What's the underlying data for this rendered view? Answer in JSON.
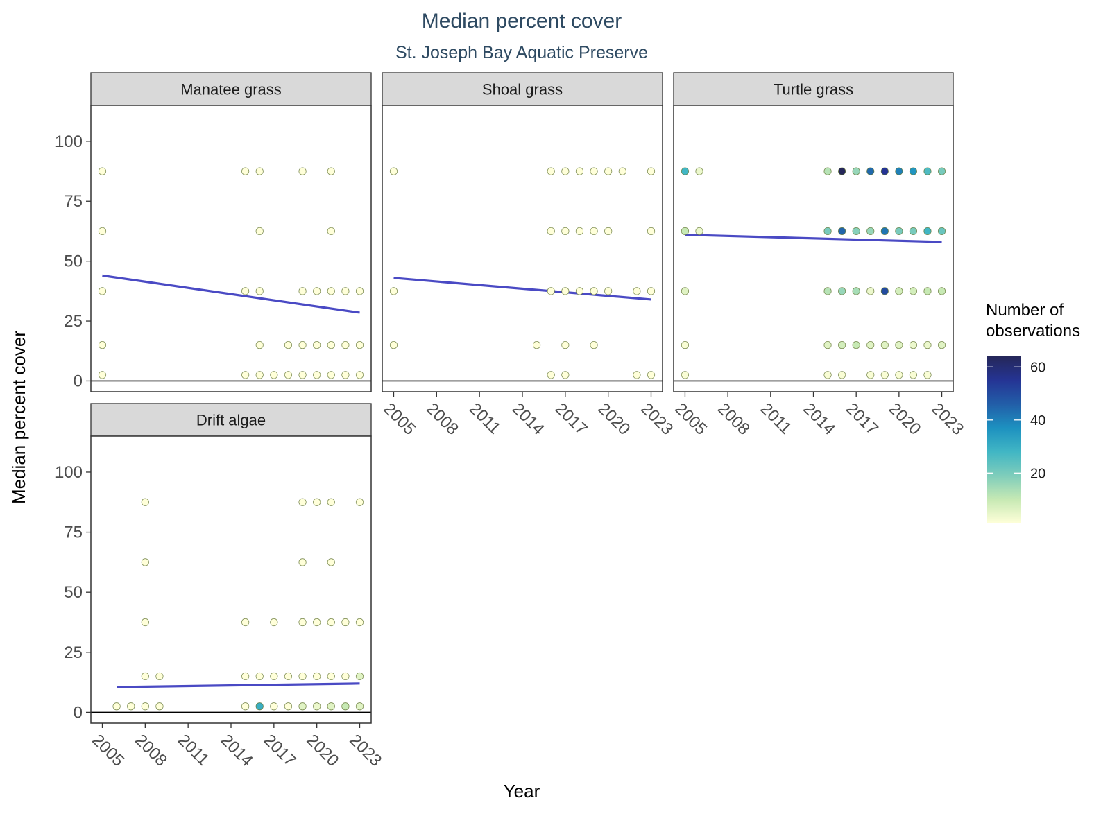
{
  "chart_data": {
    "type": "scatter",
    "title": "Median percent cover",
    "subtitle": "St. Joseph Bay Aquatic Preserve",
    "xlabel": "Year",
    "ylabel": "Median percent cover",
    "xlim": [
      2004.2,
      2023.8
    ],
    "ylim": [
      -4.5,
      115
    ],
    "x_ticks": [
      2005,
      2008,
      2011,
      2014,
      2017,
      2020,
      2023
    ],
    "y_ticks": [
      0,
      25,
      50,
      75,
      100
    ],
    "grid": false,
    "legend": {
      "title_lines": [
        "Number of",
        "observations"
      ],
      "position": "right",
      "range": [
        1,
        64
      ],
      "ticks": [
        20,
        40,
        60
      ],
      "colors": [
        "#ffffd9",
        "#c7e9b4",
        "#7fcdbb",
        "#41b6c4",
        "#1d91c0",
        "#225ea8",
        "#253494",
        "#252759"
      ]
    },
    "colors": {
      "trend": "#4a4ac4",
      "point_stroke": "#5a6e2a"
    },
    "panels": [
      {
        "name": "Manatee grass",
        "trend": {
          "x": [
            2005,
            2023
          ],
          "y": [
            44,
            28.5
          ]
        },
        "points": [
          [
            2005,
            87.5,
            1
          ],
          [
            2005,
            62.5,
            1
          ],
          [
            2005,
            37.5,
            1
          ],
          [
            2005,
            15,
            1
          ],
          [
            2005,
            2.5,
            1
          ],
          [
            2015,
            87.5,
            1
          ],
          [
            2016,
            87.5,
            1
          ],
          [
            2019,
            87.5,
            1
          ],
          [
            2021,
            87.5,
            1
          ],
          [
            2016,
            62.5,
            1
          ],
          [
            2021,
            62.5,
            1
          ],
          [
            2015,
            37.5,
            1
          ],
          [
            2016,
            37.5,
            1
          ],
          [
            2019,
            37.5,
            1
          ],
          [
            2020,
            37.5,
            1
          ],
          [
            2021,
            37.5,
            1
          ],
          [
            2022,
            37.5,
            1
          ],
          [
            2023,
            37.5,
            1
          ],
          [
            2016,
            15,
            1
          ],
          [
            2018,
            15,
            1
          ],
          [
            2019,
            15,
            1
          ],
          [
            2020,
            15,
            1
          ],
          [
            2021,
            15,
            1
          ],
          [
            2022,
            15,
            1
          ],
          [
            2023,
            15,
            1
          ],
          [
            2015,
            2.5,
            1
          ],
          [
            2016,
            2.5,
            1
          ],
          [
            2017,
            2.5,
            1
          ],
          [
            2018,
            2.5,
            1
          ],
          [
            2019,
            2.5,
            1
          ],
          [
            2020,
            2.5,
            1
          ],
          [
            2021,
            2.5,
            1
          ],
          [
            2022,
            2.5,
            1
          ],
          [
            2023,
            2.5,
            1
          ]
        ]
      },
      {
        "name": "Shoal grass",
        "trend": {
          "x": [
            2005,
            2023
          ],
          "y": [
            43,
            34
          ]
        },
        "points": [
          [
            2005,
            87.5,
            1
          ],
          [
            2005,
            37.5,
            1
          ],
          [
            2005,
            15,
            1
          ],
          [
            2016,
            87.5,
            1
          ],
          [
            2017,
            87.5,
            1
          ],
          [
            2018,
            87.5,
            1
          ],
          [
            2019,
            87.5,
            1
          ],
          [
            2020,
            87.5,
            1
          ],
          [
            2021,
            87.5,
            1
          ],
          [
            2023,
            87.5,
            1
          ],
          [
            2016,
            62.5,
            1
          ],
          [
            2017,
            62.5,
            1
          ],
          [
            2018,
            62.5,
            1
          ],
          [
            2019,
            62.5,
            1
          ],
          [
            2020,
            62.5,
            1
          ],
          [
            2023,
            62.5,
            1
          ],
          [
            2016,
            37.5,
            1
          ],
          [
            2017,
            37.5,
            1
          ],
          [
            2018,
            37.5,
            1
          ],
          [
            2019,
            37.5,
            1
          ],
          [
            2020,
            37.5,
            1
          ],
          [
            2022,
            37.5,
            1
          ],
          [
            2023,
            37.5,
            1
          ],
          [
            2015,
            15,
            1
          ],
          [
            2017,
            15,
            1
          ],
          [
            2019,
            15,
            1
          ],
          [
            2016,
            2.5,
            1
          ],
          [
            2017,
            2.5,
            1
          ],
          [
            2022,
            2.5,
            1
          ],
          [
            2023,
            2.5,
            1
          ]
        ]
      },
      {
        "name": "Turtle grass",
        "trend": {
          "x": [
            2005,
            2023
          ],
          "y": [
            61,
            58
          ]
        },
        "points": [
          [
            2005,
            87.5,
            28
          ],
          [
            2006,
            87.5,
            4
          ],
          [
            2005,
            62.5,
            10
          ],
          [
            2006,
            62.5,
            4
          ],
          [
            2005,
            37.5,
            6
          ],
          [
            2005,
            15,
            2
          ],
          [
            2005,
            2.5,
            2
          ],
          [
            2015,
            87.5,
            12
          ],
          [
            2016,
            87.5,
            64
          ],
          [
            2017,
            87.5,
            16
          ],
          [
            2018,
            87.5,
            44
          ],
          [
            2019,
            87.5,
            55
          ],
          [
            2020,
            87.5,
            40
          ],
          [
            2021,
            87.5,
            36
          ],
          [
            2022,
            87.5,
            26
          ],
          [
            2023,
            87.5,
            20
          ],
          [
            2015,
            62.5,
            20
          ],
          [
            2016,
            62.5,
            45
          ],
          [
            2017,
            62.5,
            18
          ],
          [
            2018,
            62.5,
            16
          ],
          [
            2019,
            62.5,
            42
          ],
          [
            2020,
            62.5,
            20
          ],
          [
            2021,
            62.5,
            20
          ],
          [
            2022,
            62.5,
            28
          ],
          [
            2023,
            62.5,
            22
          ],
          [
            2015,
            37.5,
            12
          ],
          [
            2016,
            37.5,
            16
          ],
          [
            2017,
            37.5,
            14
          ],
          [
            2018,
            37.5,
            4
          ],
          [
            2019,
            37.5,
            50
          ],
          [
            2020,
            37.5,
            8
          ],
          [
            2021,
            37.5,
            8
          ],
          [
            2022,
            37.5,
            10
          ],
          [
            2023,
            37.5,
            10
          ],
          [
            2015,
            15,
            6
          ],
          [
            2016,
            15,
            8
          ],
          [
            2017,
            15,
            10
          ],
          [
            2018,
            15,
            6
          ],
          [
            2019,
            15,
            6
          ],
          [
            2020,
            15,
            6
          ],
          [
            2021,
            15,
            4
          ],
          [
            2022,
            15,
            4
          ],
          [
            2023,
            15,
            6
          ],
          [
            2015,
            2.5,
            2
          ],
          [
            2016,
            2.5,
            2
          ],
          [
            2018,
            2.5,
            2
          ],
          [
            2019,
            2.5,
            2
          ],
          [
            2020,
            2.5,
            2
          ],
          [
            2021,
            2.5,
            2
          ],
          [
            2022,
            2.5,
            2
          ]
        ]
      },
      {
        "name": "Drift algae",
        "trend": {
          "x": [
            2006,
            2023
          ],
          "y": [
            10.5,
            12
          ]
        },
        "points": [
          [
            2008,
            87.5,
            1
          ],
          [
            2008,
            62.5,
            1
          ],
          [
            2008,
            37.5,
            1
          ],
          [
            2008,
            15,
            1
          ],
          [
            2009,
            15,
            1
          ],
          [
            2006,
            2.5,
            1
          ],
          [
            2007,
            2.5,
            1
          ],
          [
            2008,
            2.5,
            1
          ],
          [
            2009,
            2.5,
            1
          ],
          [
            2019,
            87.5,
            1
          ],
          [
            2020,
            87.5,
            1
          ],
          [
            2021,
            87.5,
            1
          ],
          [
            2023,
            87.5,
            1
          ],
          [
            2019,
            62.5,
            1
          ],
          [
            2021,
            62.5,
            1
          ],
          [
            2015,
            37.5,
            1
          ],
          [
            2017,
            37.5,
            1
          ],
          [
            2019,
            37.5,
            1
          ],
          [
            2020,
            37.5,
            1
          ],
          [
            2021,
            37.5,
            1
          ],
          [
            2022,
            37.5,
            1
          ],
          [
            2023,
            37.5,
            1
          ],
          [
            2015,
            15,
            1
          ],
          [
            2016,
            15,
            1
          ],
          [
            2017,
            15,
            1
          ],
          [
            2018,
            15,
            1
          ],
          [
            2019,
            15,
            1
          ],
          [
            2020,
            15,
            1
          ],
          [
            2021,
            15,
            1
          ],
          [
            2022,
            15,
            1
          ],
          [
            2023,
            15,
            6
          ],
          [
            2015,
            2.5,
            1
          ],
          [
            2016,
            2.5,
            30
          ],
          [
            2017,
            2.5,
            1
          ],
          [
            2018,
            2.5,
            1
          ],
          [
            2019,
            2.5,
            6
          ],
          [
            2020,
            2.5,
            4
          ],
          [
            2021,
            2.5,
            6
          ],
          [
            2022,
            2.5,
            10
          ],
          [
            2023,
            2.5,
            6
          ]
        ]
      }
    ]
  }
}
